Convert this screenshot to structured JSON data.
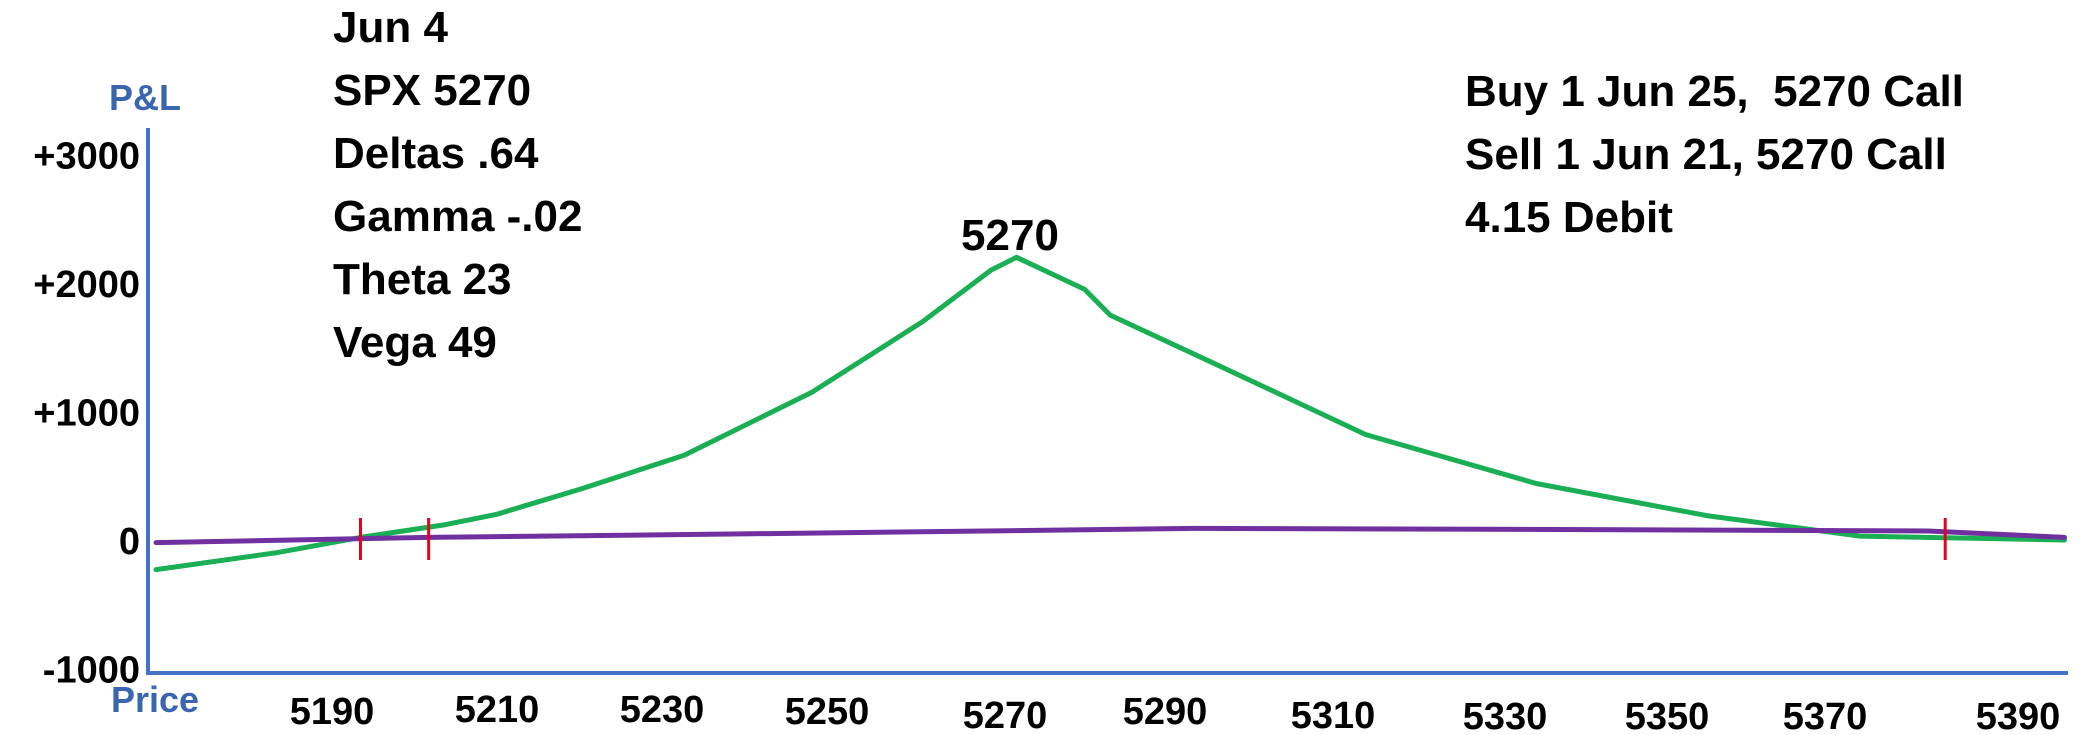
{
  "chart_data": {
    "type": "line",
    "ylabel": "P&L",
    "xlabel": "Price",
    "ylim": [
      -1000,
      3000
    ],
    "yticks": [
      "+3000",
      "+2000",
      "+1000",
      "0",
      "-1000"
    ],
    "ytick_values": [
      3000,
      2000,
      1000,
      0,
      -1000
    ],
    "xticks": [
      "5190",
      "5210",
      "5230",
      "5250",
      "5270",
      "5290",
      "5310",
      "5330",
      "5350",
      "5370",
      "5390"
    ],
    "xtick_values": [
      5190,
      5210,
      5230,
      5250,
      5270,
      5290,
      5310,
      5330,
      5350,
      5370,
      5390
    ],
    "xlim": [
      5168,
      5392
    ],
    "series": [
      {
        "color": "#1aaf54",
        "x": [
          5168,
          5182,
          5192,
          5202,
          5208,
          5218,
          5230,
          5245,
          5258,
          5266,
          5269,
          5277,
          5280,
          5292,
          5310,
          5330,
          5350,
          5368,
          5392
        ],
        "y": [
          -230,
          -100,
          20,
          120,
          200,
          400,
          660,
          1150,
          1700,
          2100,
          2200,
          1950,
          1750,
          1380,
          820,
          440,
          190,
          30,
          0
        ]
      },
      {
        "color": "#7030a0",
        "x": [
          5168,
          5200,
          5240,
          5290,
          5340,
          5376,
          5392
        ],
        "y": [
          -20,
          20,
          50,
          90,
          80,
          70,
          20
        ]
      }
    ],
    "breakeven_x": [
      5192,
      5200,
      5378
    ],
    "annotations": [
      "5270"
    ]
  },
  "info_left": [
    "Jun 4",
    "SPX 5270",
    "Deltas .64",
    "Gamma -.02",
    "Theta 23",
    "Vega 49"
  ],
  "info_right": [
    "Buy 1 Jun 25,  5270 Call",
    "Sell 1 Jun 21, 5270 Call",
    "4.15 Debit"
  ],
  "colors": {
    "axis": "#4472c4",
    "breakeven": "#e8001c"
  }
}
